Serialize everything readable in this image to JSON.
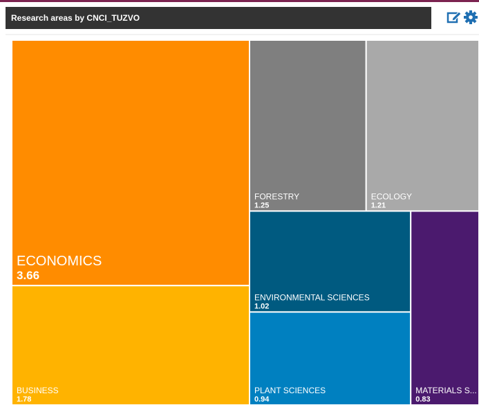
{
  "chart_data": {
    "type": "treemap",
    "title": "Research areas by CNCI_TUZVO",
    "categories": [
      "ECONOMICS",
      "BUSINESS",
      "FORESTRY",
      "ECOLOGY",
      "ENVIRONMENTAL SCIENCES",
      "PLANT SCIENCES",
      "MATERIALS S..."
    ],
    "values": [
      3.66,
      1.78,
      1.25,
      1.21,
      1.02,
      0.94,
      0.83
    ],
    "colors": [
      "#ff8c00",
      "#ffb300",
      "#7f7f7f",
      "#a9a9a9",
      "#005a80",
      "#0080c0",
      "#4b1a6e"
    ]
  }
}
